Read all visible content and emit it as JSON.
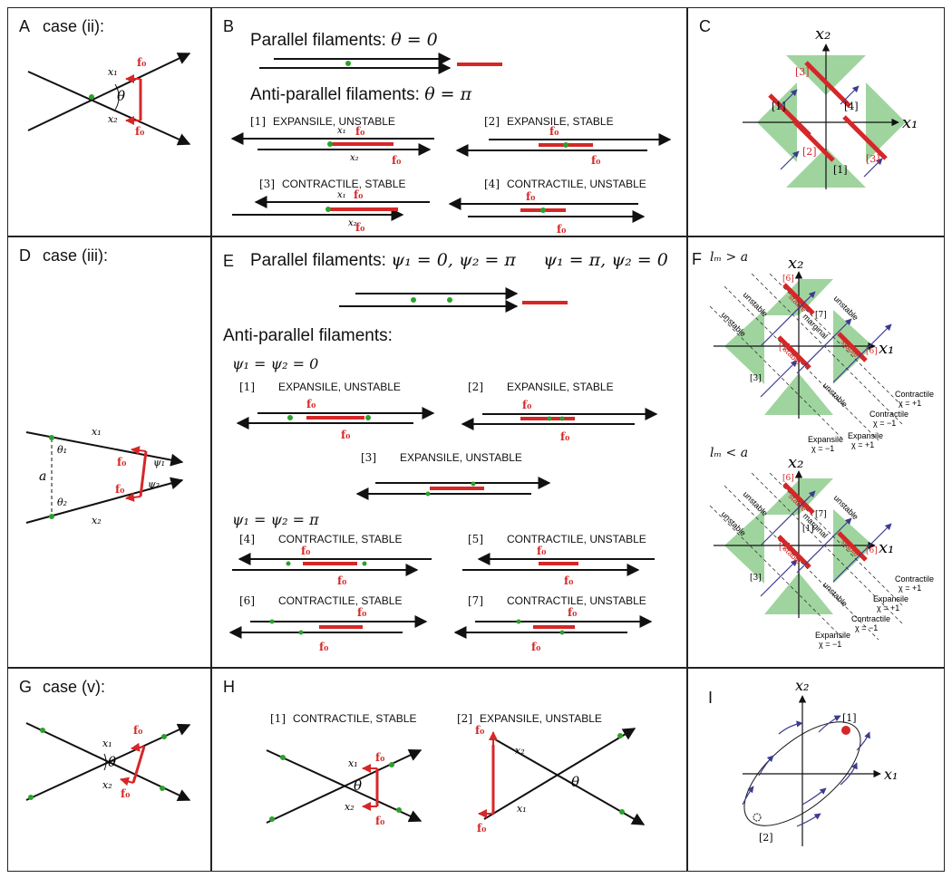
{
  "panels": {
    "A": {
      "letter": "A",
      "title": "case (ii):"
    },
    "B": {
      "letter": "B",
      "parallel": "Parallel filaments:",
      "parallel_math": "θ = 0",
      "anti": "Anti-parallel filaments:",
      "anti_math": "θ = π",
      "modes": [
        {
          "idx": "[1]",
          "label": "EXPANSILE, UNSTABLE"
        },
        {
          "idx": "[2]",
          "label": "EXPANSILE, STABLE"
        },
        {
          "idx": "[3]",
          "label": "CONTRACTILE, STABLE"
        },
        {
          "idx": "[4]",
          "label": "CONTRACTILE, UNSTABLE"
        }
      ]
    },
    "C": {
      "letter": "C"
    },
    "D": {
      "letter": "D",
      "title": "case (iii):"
    },
    "E": {
      "letter": "E",
      "parallel": "Parallel filaments:",
      "parallel_math": "ψ₁ = 0, ψ₂ = π     ψ₁ = π, ψ₂ = 0",
      "anti": "Anti-parallel filaments:",
      "cond1": "ψ₁ = ψ₂ = 0",
      "cond2": "ψ₁ = ψ₂ = π",
      "modes": [
        {
          "idx": "[1]",
          "label": "EXPANSILE, UNSTABLE"
        },
        {
          "idx": "[2]",
          "label": "EXPANSILE, STABLE"
        },
        {
          "idx": "[3]",
          "label": "EXPANSILE, UNSTABLE"
        },
        {
          "idx": "[4]",
          "label": "CONTRACTILE, STABLE"
        },
        {
          "idx": "[5]",
          "label": "CONTRACTILE, UNSTABLE"
        },
        {
          "idx": "[6]",
          "label": "CONTRACTILE, STABLE"
        },
        {
          "idx": "[7]",
          "label": "CONTRACTILE, UNSTABLE"
        }
      ]
    },
    "F": {
      "letter": "F",
      "top": "lₘ > a",
      "bottom": "lₘ < a"
    },
    "G": {
      "letter": "G",
      "title": "case (v):"
    },
    "H": {
      "letter": "H",
      "modes": [
        {
          "idx": "[1]",
          "label": "CONTRACTILE, STABLE"
        },
        {
          "idx": "[2]",
          "label": "EXPANSILE, UNSTABLE"
        }
      ]
    },
    "I": {
      "letter": "I"
    }
  },
  "symbols": {
    "x1": "x₁",
    "x2": "x₂",
    "theta": "θ",
    "theta1": "θ₁",
    "theta2": "θ₂",
    "psi1": "ψ₁",
    "psi2": "ψ₂",
    "f0": "f₀",
    "a": "a"
  },
  "c_labels": [
    "[1]",
    "[2]",
    "[3]",
    "[4]",
    "[1]",
    "[3]"
  ],
  "f_labels": {
    "stable": "stable",
    "unstable": "unstable",
    "marginal": "marginal",
    "contractile": "Contractile",
    "expansile": "Expansile",
    "chi_plus": "χ = +1",
    "chi_minus": "χ = −1",
    "n1": "[1]",
    "n2": "[2]",
    "n3": "[3]",
    "n6": "[6]",
    "n7": "[7]"
  },
  "i_labels": [
    "[1]",
    "[2]"
  ],
  "colors": {
    "force": "#d62728",
    "bead": "#2ca02c",
    "region": "#9fd49f",
    "arrow": "#3b3b8f",
    "line": "#111111"
  }
}
